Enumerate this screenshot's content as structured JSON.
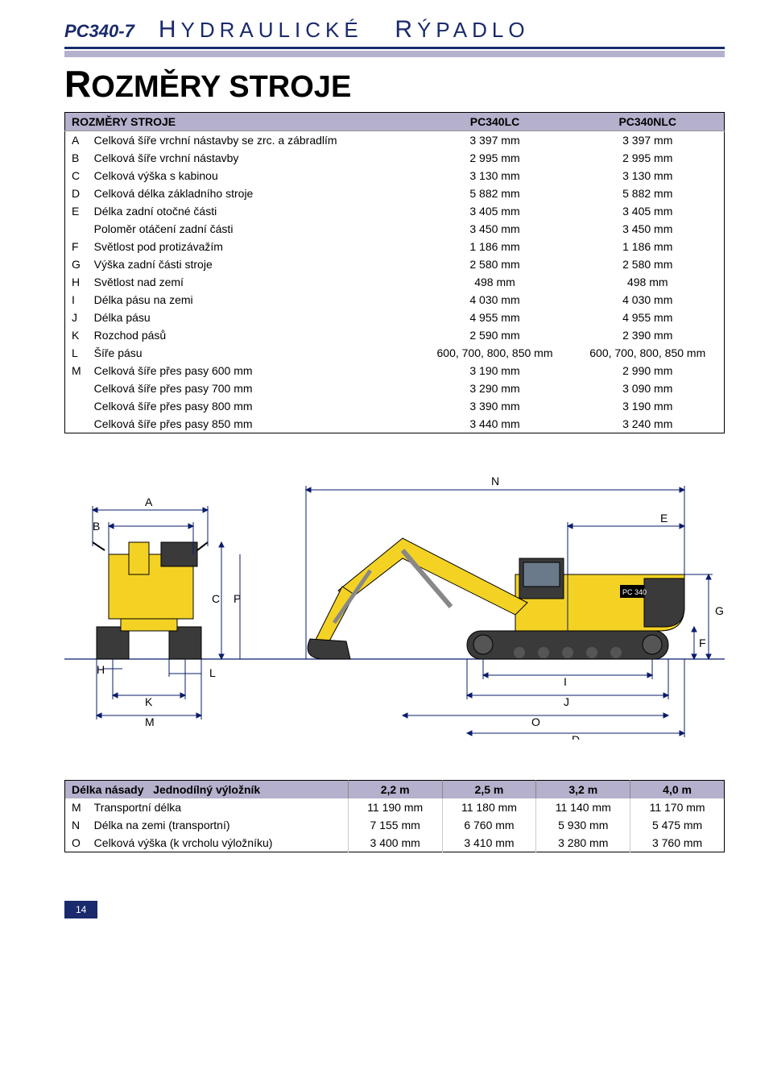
{
  "header": {
    "model": "PC340-7",
    "category_cap1": "H",
    "category_word1": "YDRAULICKÉ",
    "category_cap2": "R",
    "category_word2": "ÝPADLO"
  },
  "section_title_big": "R",
  "section_title_rest": "OZMĚRY STROJE",
  "table1": {
    "header": {
      "label": "ROZMĚRY STROJE",
      "col1": "PC340LC",
      "col2": "PC340NLC"
    },
    "rows": [
      {
        "letter": "A",
        "label": "Celková šíře vrchní nástavby se zrc. a zábradlím",
        "v1": "3 397 mm",
        "v2": "3 397 mm"
      },
      {
        "letter": "B",
        "label": "Celková šíře vrchní nástavby",
        "v1": "2 995 mm",
        "v2": "2 995 mm"
      },
      {
        "letter": "C",
        "label": "Celková výška s kabinou",
        "v1": "3 130 mm",
        "v2": "3 130 mm"
      },
      {
        "letter": "D",
        "label": "Celková délka základního stroje",
        "v1": "5 882 mm",
        "v2": "5 882 mm"
      },
      {
        "letter": "E",
        "label": "Délka zadní otočné části",
        "v1": "3 405 mm",
        "v2": "3 405 mm"
      },
      {
        "letter": "",
        "label": "Poloměr otáčení zadní části",
        "v1": "3 450 mm",
        "v2": "3 450 mm"
      },
      {
        "letter": "F",
        "label": "Světlost pod protizávažím",
        "v1": "1 186 mm",
        "v2": "1 186 mm"
      },
      {
        "letter": "G",
        "label": "Výška zadní části stroje",
        "v1": "2 580 mm",
        "v2": "2 580 mm"
      },
      {
        "letter": "H",
        "label": "Světlost nad zemí",
        "v1": "498 mm",
        "v2": "498 mm"
      },
      {
        "letter": "I",
        "label": "Délka pásu na zemi",
        "v1": "4 030 mm",
        "v2": "4 030 mm"
      },
      {
        "letter": "J",
        "label": "Délka pásu",
        "v1": "4 955 mm",
        "v2": "4 955 mm"
      },
      {
        "letter": "K",
        "label": "Rozchod pásů",
        "v1": "2 590 mm",
        "v2": "2 390 mm"
      },
      {
        "letter": "L",
        "label": "Šíře pásu",
        "v1": "600, 700, 800, 850 mm",
        "v2": "600, 700, 800, 850 mm"
      },
      {
        "letter": "M",
        "label": "Celková šíře přes pasy 600 mm",
        "v1": "3 190 mm",
        "v2": "2 990 mm"
      },
      {
        "letter": "",
        "label": "Celková šíře přes pasy 700 mm",
        "v1": "3 290 mm",
        "v2": "3 090 mm"
      },
      {
        "letter": "",
        "label": "Celková šíře přes pasy 800 mm",
        "v1": "3 390 mm",
        "v2": "3 190 mm"
      },
      {
        "letter": "",
        "label": "Celková šíře přes pasy 850 mm",
        "v1": "3 440 mm",
        "v2": "3 240 mm"
      }
    ]
  },
  "diagram": {
    "labels": {
      "A": "A",
      "B": "B",
      "C": "C",
      "P": "P",
      "H": "H",
      "K": "K",
      "L": "L",
      "M": "M",
      "N": "N",
      "E": "E",
      "G": "G",
      "F": "F",
      "I": "I",
      "J": "J",
      "O": "O",
      "D": "D"
    },
    "colors": {
      "machine_body": "#f4d224",
      "machine_dark": "#3a3a3a",
      "machine_outline": "#000000",
      "dim_line": "#0a1c6b",
      "bg": "#ffffff"
    },
    "model_badge": "PC 340"
  },
  "table2": {
    "header": {
      "label1": "Délka násady",
      "label2": "Jednodílný výložník",
      "cols": [
        "2,2 m",
        "2,5 m",
        "3,2 m",
        "4,0 m"
      ]
    },
    "rows": [
      {
        "letter": "M",
        "label": "Transportní délka",
        "vals": [
          "11 190 mm",
          "11 180 mm",
          "11 140 mm",
          "11 170 mm"
        ]
      },
      {
        "letter": "N",
        "label": "Délka na zemi (transportní)",
        "vals": [
          "7 155 mm",
          "6 760 mm",
          "5 930 mm",
          "5 475 mm"
        ]
      },
      {
        "letter": "O",
        "label": "Celková výška (k vrcholu výložníku)",
        "vals": [
          "3 400 mm",
          "3 410 mm",
          "3 280 mm",
          "3 760 mm"
        ]
      }
    ]
  },
  "page_number": "14"
}
